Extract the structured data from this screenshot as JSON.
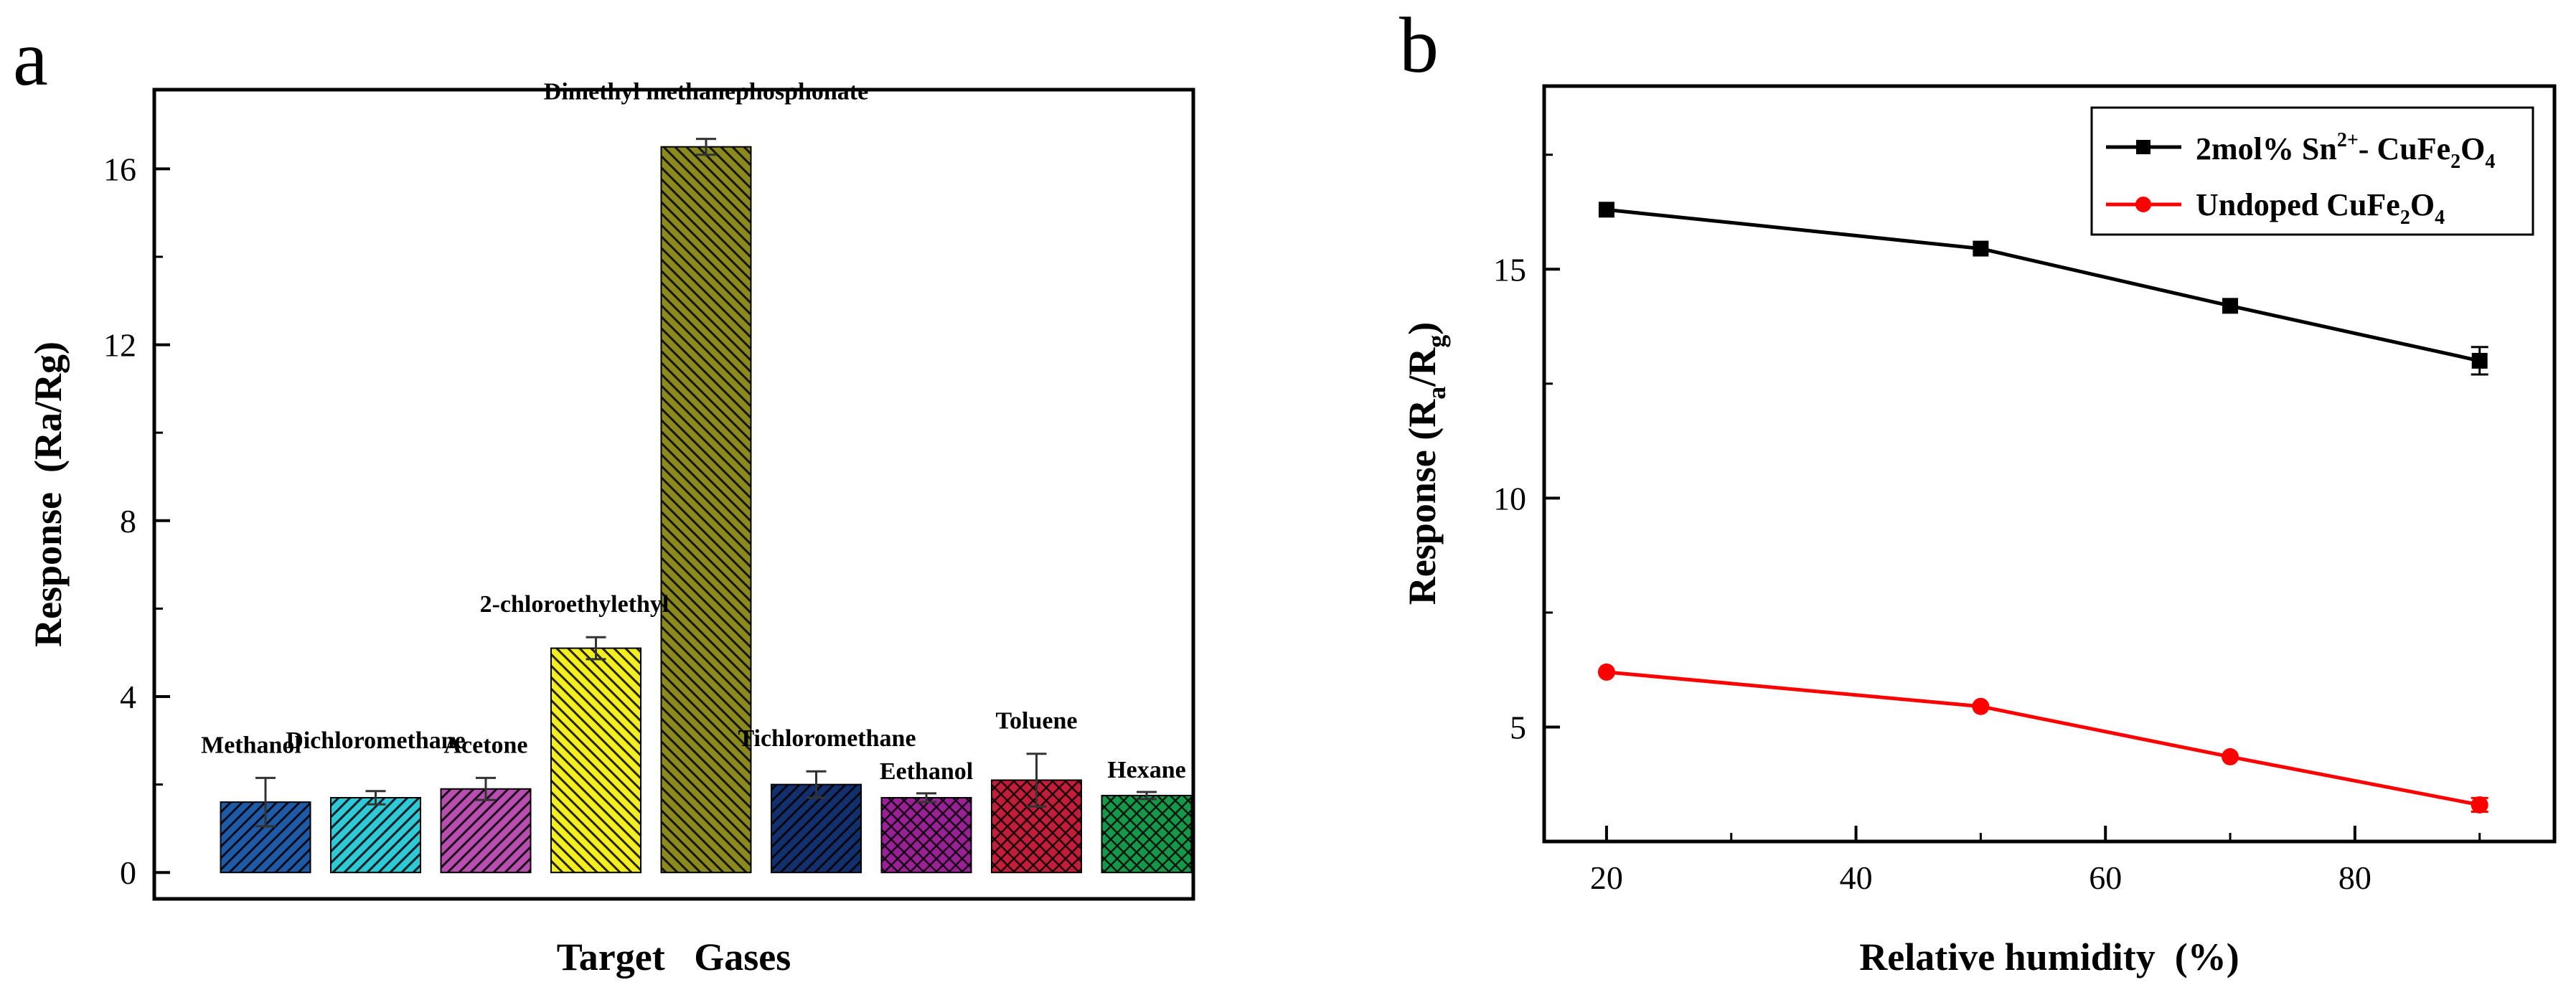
{
  "panel_labels": {
    "a": "a",
    "b": "b"
  },
  "chart_data": [
    {
      "type": "bar",
      "panel": "a",
      "xlabel": "Target   Gases",
      "ylabel": "Response  (Ra/Rg)",
      "ylim": [
        -0.6,
        17.8
      ],
      "yticks": [
        0,
        4,
        8,
        12,
        16
      ],
      "categories": [
        "Methanol",
        "Dichloromethane",
        "Acetone",
        "2-chloroethylethyl",
        "Dimethyl methanephosphonate",
        "Tichloromethane",
        "Eethanol",
        "Toluene",
        "Hexane"
      ],
      "values": [
        1.6,
        1.7,
        1.9,
        5.1,
        16.5,
        2.0,
        1.7,
        2.1,
        1.75
      ],
      "errors": [
        0.55,
        0.15,
        0.25,
        0.25,
        0.18,
        0.3,
        0.1,
        0.6,
        0.08
      ],
      "colors": [
        "#1f5aa8",
        "#2ec8d6",
        "#b84fb0",
        "#f2ee22",
        "#8a8a1e",
        "#12306e",
        "#9a2096",
        "#c21e3a",
        "#16984a"
      ],
      "patterns": [
        "diag-right",
        "diag-right",
        "diag-right",
        "diag-left",
        "diag-left",
        "diag-right",
        "cross",
        "cross",
        "cross"
      ]
    },
    {
      "type": "line",
      "panel": "b",
      "xlabel": "Relative humidity  (%)",
      "ylabel_main": "Response (R",
      "ylabel_sub1": "a",
      "ylabel_mid": "/R",
      "ylabel_sub2": "g",
      "ylabel_end": ")",
      "xlim": [
        15,
        96
      ],
      "ylim": [
        2.5,
        19
      ],
      "xticks": [
        20,
        40,
        60,
        80
      ],
      "yticks": [
        5,
        10,
        15
      ],
      "legend_position": "top-right",
      "series": [
        {
          "name": "2mol% Sn2+- CuFe2O4",
          "legend_parts": {
            "a": "2mol% Sn",
            "b": "2+",
            "c": "- CuFe",
            "d": "2",
            "e": "O",
            "f": "4"
          },
          "color": "#000000",
          "marker": "square",
          "x": [
            20,
            50,
            70,
            90
          ],
          "y": [
            16.3,
            15.45,
            14.2,
            13.0
          ],
          "errors": [
            0,
            0,
            0,
            0.3
          ]
        },
        {
          "name": "Undoped CuFe2O4",
          "legend_parts": {
            "a": "Undoped CuFe",
            "d": "2",
            "e": "O",
            "f": "4"
          },
          "color": "#ff0000",
          "marker": "circle",
          "x": [
            20,
            50,
            70,
            90
          ],
          "y": [
            6.2,
            5.45,
            4.35,
            3.3
          ],
          "errors": [
            0,
            0,
            0,
            0.15
          ]
        }
      ]
    }
  ]
}
